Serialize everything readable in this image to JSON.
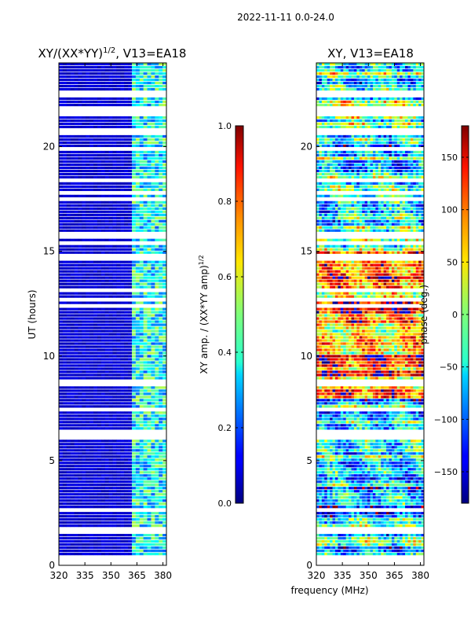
{
  "figure_title": "2022-11-11 0.0-24.0",
  "shared_xlabel": "frequency (MHz)",
  "chart_data": [
    {
      "type": "heatmap",
      "id": "amp",
      "title_main": "XY/(XX*YY)",
      "title_exp": "1/2",
      "title_suffix": ", V13=EA18",
      "xlabel": "frequency (MHz)",
      "ylabel": "UT (hours)",
      "x_range": [
        320,
        382
      ],
      "y_range": [
        0,
        24
      ],
      "x_ticks": [
        320,
        335,
        350,
        365,
        380
      ],
      "x_tick_labels": [
        "320",
        "335",
        "350",
        "365",
        "380"
      ],
      "y_ticks": [
        0,
        5,
        10,
        15,
        20
      ],
      "y_tick_labels": [
        "0",
        "5",
        "10",
        "15",
        "20"
      ],
      "colorbar": {
        "label_main": "XY amp. / (XX*YY amp)",
        "label_exp": "1/2",
        "range": [
          0.0,
          1.0
        ],
        "ticks": [
          0.0,
          0.2,
          0.4,
          0.6,
          0.8,
          1.0
        ],
        "tick_labels": [
          "0.0",
          "0.2",
          "0.4",
          "0.6",
          "0.8",
          "1.0"
        ],
        "colormap": "jet"
      },
      "typical_values": {
        "below_363_MHz": 0.05,
        "above_363_MHz": 0.35
      },
      "flagged_hours": [
        0.2,
        1.5,
        6.1,
        8.6,
        14.7,
        21.6,
        22.4
      ]
    },
    {
      "type": "heatmap",
      "id": "phase",
      "title": "XY, V13=EA18",
      "xlabel": "frequency (MHz)",
      "ylabel": "",
      "x_range": [
        320,
        382
      ],
      "y_range": [
        0,
        24
      ],
      "x_ticks": [
        320,
        335,
        350,
        365,
        380
      ],
      "x_tick_labels": [
        "320",
        "335",
        "350",
        "365",
        "380"
      ],
      "y_ticks": [
        0,
        5,
        10,
        15,
        20
      ],
      "y_tick_labels": [
        "0",
        "5",
        "10",
        "15",
        "20"
      ],
      "colorbar": {
        "label": "phase (deg.)",
        "range": [
          -180,
          180
        ],
        "ticks": [
          -150,
          -100,
          -50,
          0,
          50,
          100,
          150
        ],
        "tick_labels": [
          "−150",
          "−100",
          "−50",
          "0",
          "50",
          "100",
          "150"
        ],
        "colormap": "jet"
      },
      "typical_phase_deg": {
        "hours_0_to_8": -60,
        "hours_8_to_15": 90,
        "hours_15_to_24": -30
      },
      "flagged_hours": [
        0.2,
        1.5,
        6.1,
        8.6,
        14.7,
        21.6,
        22.4
      ]
    }
  ]
}
